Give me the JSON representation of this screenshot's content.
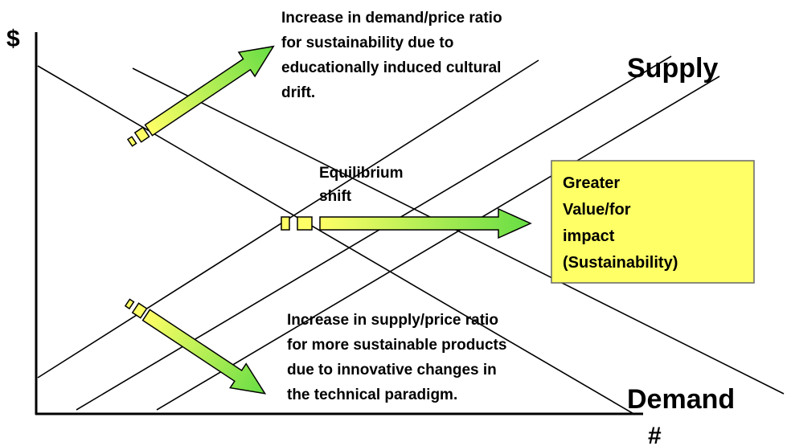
{
  "axes": {
    "y_label": "$",
    "x_label": "#"
  },
  "curves": {
    "supply": "Supply",
    "demand": "Demand"
  },
  "annotations": {
    "demand_shift": [
      "Increase in demand/price ratio",
      "for sustainability due to",
      "educationally induced cultural",
      "drift."
    ],
    "equilibrium": [
      "Equilibrium",
      "shift"
    ],
    "supply_shift": [
      "Increase in supply/price ratio",
      "for more sustainable products",
      "due to innovative changes in",
      "the technical paradigm."
    ]
  },
  "box": [
    "Greater",
    "Value/for",
    "impact",
    "(Sustainability)"
  ]
}
